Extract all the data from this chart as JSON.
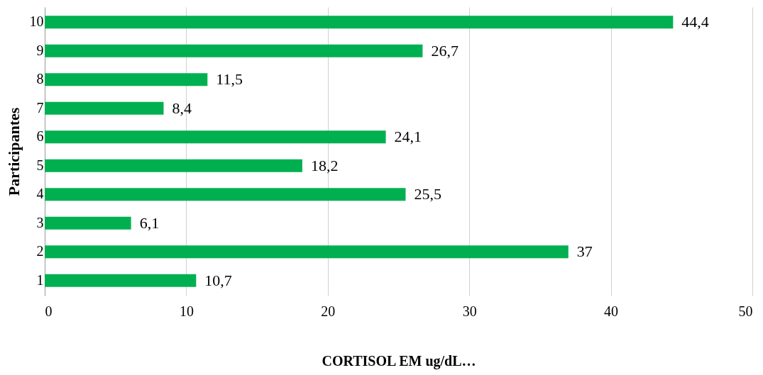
{
  "chart_data": {
    "type": "bar",
    "orientation": "horizontal",
    "xlabel": "CORTISOL EM ug/dL…",
    "ylabel": "Participantes",
    "categories": [
      "10",
      "9",
      "8",
      "7",
      "6",
      "5",
      "4",
      "3",
      "2",
      "1"
    ],
    "values": [
      44.4,
      26.7,
      11.5,
      8.4,
      24.1,
      18.2,
      25.5,
      6.1,
      37,
      10.7
    ],
    "value_labels": [
      "44,4",
      "26,7",
      "11,5",
      "8,4",
      "24,1",
      "18,2",
      "25,5",
      "6,1",
      "37",
      "10,7"
    ],
    "color": "#00b050",
    "xlim": [
      0,
      50
    ],
    "xticks": [
      0,
      10,
      20,
      30,
      40,
      50
    ],
    "grid": "x"
  }
}
